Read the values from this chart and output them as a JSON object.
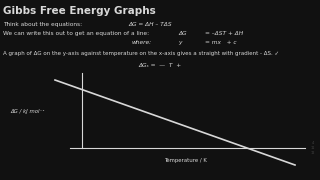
{
  "title": "Gibbs Free Energy Graphs",
  "bg_color": "#111111",
  "text_color": "#d8d8d8",
  "title_fontsize": 7.5,
  "body_fontsize": 4.2,
  "line1_left": "Think about the equations:",
  "line1_right": "ΔG = ΔH – TΔS",
  "line2_left": "We can write this out to get an equation of a line:",
  "line2_mid": "ΔG",
  "line2_right": "= –ΔST + ΔH",
  "line3_left": "where:",
  "line3_mid": "y",
  "line3_right": "= mx   + c",
  "line4": "A graph of ΔG on the y-axis against temperature on the x-axis gives a straight with gradient - ΔS. ✓",
  "annotation": "ΔGₛ =  —  T  +",
  "ylabel": "ΔG / kJ mol⁻¹",
  "xlabel": "Temperature / K",
  "sidebar": "4\n11\n12"
}
